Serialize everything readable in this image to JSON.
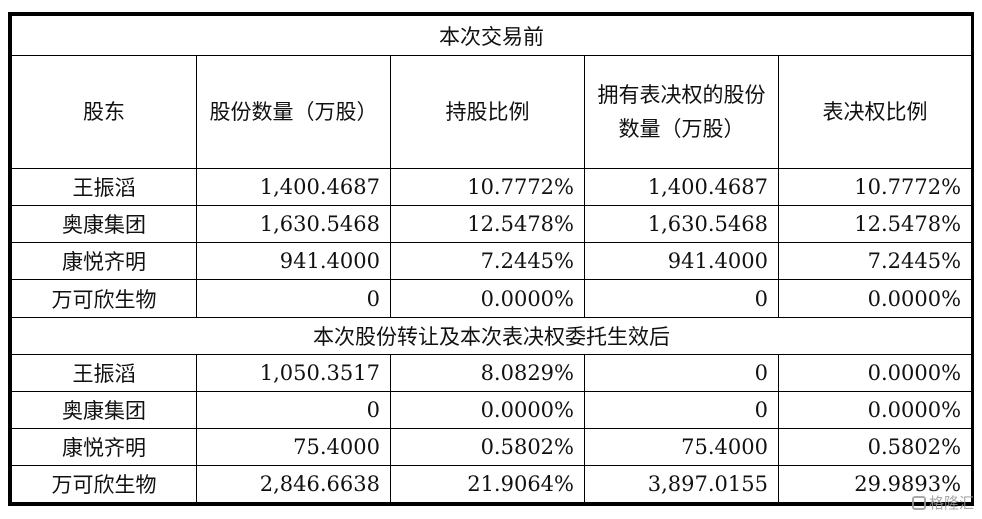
{
  "table": {
    "section_before": "本次交易前",
    "section_after": "本次股份转让及本次表决权委托生效后",
    "headers": {
      "shareholder": "股东",
      "shares": "股份数量（万股）",
      "ratio": "持股比例",
      "voting_shares": "拥有表决权的股份数量（万股）",
      "voting_ratio": "表决权比例"
    },
    "before_rows": [
      {
        "name": "王振滔",
        "shares": "1,400.4687",
        "ratio": "10.7772%",
        "voting_shares": "1,400.4687",
        "voting_ratio": "10.7772%"
      },
      {
        "name": "奥康集团",
        "shares": "1,630.5468",
        "ratio": "12.5478%",
        "voting_shares": "1,630.5468",
        "voting_ratio": "12.5478%"
      },
      {
        "name": "康悦齐明",
        "shares": "941.4000",
        "ratio": "7.2445%",
        "voting_shares": "941.4000",
        "voting_ratio": "7.2445%"
      },
      {
        "name": "万可欣生物",
        "shares": "0",
        "ratio": "0.0000%",
        "voting_shares": "0",
        "voting_ratio": "0.0000%"
      }
    ],
    "after_rows": [
      {
        "name": "王振滔",
        "shares": "1,050.3517",
        "ratio": "8.0829%",
        "voting_shares": "0",
        "voting_ratio": "0.0000%"
      },
      {
        "name": "奥康集团",
        "shares": "0",
        "ratio": "0.0000%",
        "voting_shares": "0",
        "voting_ratio": "0.0000%"
      },
      {
        "name": "康悦齐明",
        "shares": "75.4000",
        "ratio": "0.5802%",
        "voting_shares": "75.4000",
        "voting_ratio": "0.5802%"
      },
      {
        "name": "万可欣生物",
        "shares": "2,846.6638",
        "ratio": "21.9064%",
        "voting_shares": "3,897.0155",
        "voting_ratio": "29.9893%"
      }
    ]
  },
  "watermark": {
    "text": "格隆汇",
    "icon": "gelonghui-logo-icon"
  }
}
